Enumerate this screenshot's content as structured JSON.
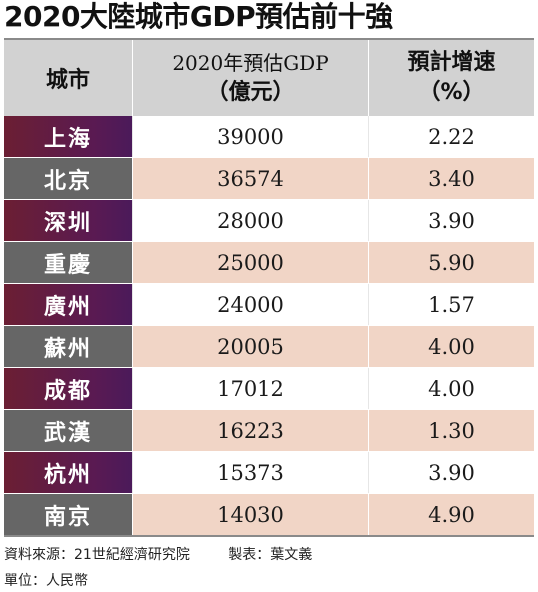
{
  "chart_data": {
    "type": "table",
    "title": "2020大陸城市GDP預估前十強",
    "columns": [
      "城市",
      "2020年預估GDP（億元）",
      "預計增速（%）"
    ],
    "header": {
      "city": "城市",
      "gdp_line1": "2020年預估GDP",
      "gdp_line2": "（億元）",
      "growth_line1": "預計增速",
      "growth_line2": "（%）"
    },
    "rows": [
      {
        "city": "上海",
        "gdp": "39000",
        "growth": "2.22"
      },
      {
        "city": "北京",
        "gdp": "36574",
        "growth": "3.40"
      },
      {
        "city": "深圳",
        "gdp": "28000",
        "growth": "3.90"
      },
      {
        "city": "重慶",
        "gdp": "25000",
        "growth": "5.90"
      },
      {
        "city": "廣州",
        "gdp": "24000",
        "growth": "1.57"
      },
      {
        "city": "蘇州",
        "gdp": "20005",
        "growth": "4.00"
      },
      {
        "city": "成都",
        "gdp": "17012",
        "growth": "4.00"
      },
      {
        "city": "武漢",
        "gdp": "16223",
        "growth": "1.30"
      },
      {
        "city": "杭州",
        "gdp": "15373",
        "growth": "3.90"
      },
      {
        "city": "南京",
        "gdp": "14030",
        "growth": "4.90"
      }
    ]
  },
  "footer": {
    "source": "資料來源：21世紀經濟研究院",
    "maker": "製表：葉文義",
    "unit": "單位：人民幣"
  },
  "colors": {
    "header_bg": "#d2d2d2",
    "city_odd": "#5a1a52",
    "city_even": "#666666",
    "row_even": "#f1d5c6"
  }
}
